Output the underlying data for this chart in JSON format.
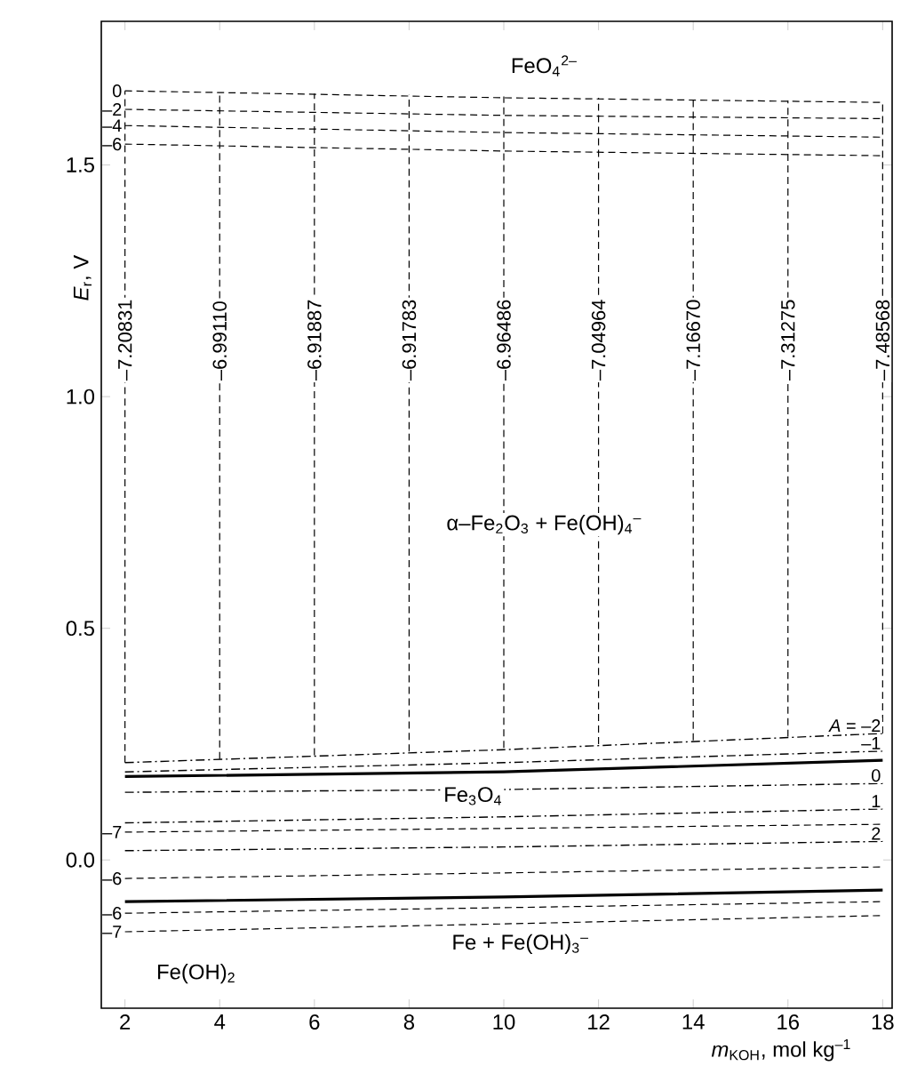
{
  "chart_data": {
    "type": "line",
    "xlabel": "*m*$_{KOH}$, mol kg$^{–1}$",
    "ylabel": "*E*$_{r}$, V",
    "xlim": [
      1.5,
      18.2
    ],
    "ylim": [
      -0.32,
      1.81
    ],
    "xticks": [
      2,
      4,
      6,
      8,
      10,
      12,
      14,
      16,
      18
    ],
    "yticks": [
      {
        "value": 0,
        "label": "0.0"
      },
      {
        "value": 0.5,
        "label": "0.5"
      },
      {
        "value": 1,
        "label": "1.0"
      },
      {
        "value": 1.5,
        "label": "1.5"
      }
    ],
    "grid": false,
    "series": [
      {
        "color": "#000000",
        "line_style": "dashed",
        "x": [
          2,
          10,
          18
        ],
        "values": [
          1.66,
          1.645,
          1.635
        ]
      },
      {
        "color": "#000000",
        "line_style": "dashed",
        "x": [
          2,
          10,
          18
        ],
        "values": [
          1.62,
          1.607,
          1.6
        ]
      },
      {
        "color": "#000000",
        "line_style": "dashed",
        "x": [
          2,
          10,
          18
        ],
        "values": [
          1.585,
          1.57,
          1.56
        ]
      },
      {
        "color": "#000000",
        "line_style": "dashed",
        "x": [
          2,
          10,
          18
        ],
        "values": [
          1.545,
          1.53,
          1.52
        ]
      },
      {
        "color": "#000000",
        "line_style": "dashed",
        "x": [
          2,
          2
        ],
        "values": [
          0.21,
          1.66
        ]
      },
      {
        "color": "#000000",
        "line_style": "dashed",
        "x": [
          4,
          4
        ],
        "values": [
          0.218,
          1.657
        ]
      },
      {
        "color": "#000000",
        "line_style": "dashed",
        "x": [
          6,
          6
        ],
        "values": [
          0.226,
          1.654
        ]
      },
      {
        "color": "#000000",
        "line_style": "dashed",
        "x": [
          8,
          8
        ],
        "values": [
          0.234,
          1.651
        ]
      },
      {
        "color": "#000000",
        "line_style": "dashed",
        "x": [
          10,
          10
        ],
        "values": [
          0.242,
          1.648
        ]
      },
      {
        "color": "#000000",
        "line_style": "dashed",
        "x": [
          12,
          12
        ],
        "values": [
          0.25,
          1.645
        ]
      },
      {
        "color": "#000000",
        "line_style": "dashed",
        "x": [
          14,
          14
        ],
        "values": [
          0.258,
          1.642
        ]
      },
      {
        "color": "#000000",
        "line_style": "dashed",
        "x": [
          16,
          16
        ],
        "values": [
          0.266,
          1.639
        ]
      },
      {
        "color": "#000000",
        "line_style": "dashed",
        "x": [
          18,
          18
        ],
        "values": [
          0.273,
          1.635
        ]
      },
      {
        "color": "#000000",
        "line_style": "dashdot",
        "x": [
          2,
          10,
          18
        ],
        "values": [
          0.21,
          0.238,
          0.273
        ]
      },
      {
        "color": "#000000",
        "line_style": "dashdot",
        "x": [
          2,
          10,
          18
        ],
        "values": [
          0.19,
          0.21,
          0.235
        ]
      },
      {
        "color": "#000000",
        "line_style": "solid",
        "x": [
          2,
          10,
          18
        ],
        "values": [
          0.18,
          0.19,
          0.215
        ]
      },
      {
        "color": "#000000",
        "line_style": "dashdot",
        "x": [
          2,
          10,
          18
        ],
        "values": [
          0.146,
          0.152,
          0.165
        ]
      },
      {
        "color": "#000000",
        "line_style": "dashdot",
        "x": [
          2,
          10,
          18
        ],
        "values": [
          0.08,
          0.093,
          0.11
        ]
      },
      {
        "color": "#000000",
        "line_style": "dashed",
        "x": [
          2,
          10,
          18
        ],
        "values": [
          0.06,
          0.068,
          0.077
        ]
      },
      {
        "color": "#000000",
        "line_style": "dashdot",
        "x": [
          2,
          10,
          18
        ],
        "values": [
          0.02,
          0.028,
          0.04
        ]
      },
      {
        "color": "#000000",
        "line_style": "dashed",
        "x": [
          2,
          10,
          18
        ],
        "values": [
          -0.04,
          -0.028,
          -0.015
        ]
      },
      {
        "color": "#000000",
        "line_style": "solid",
        "x": [
          2,
          10,
          18
        ],
        "values": [
          -0.09,
          -0.08,
          -0.065
        ]
      },
      {
        "color": "#000000",
        "line_style": "dashed",
        "x": [
          2,
          10,
          18
        ],
        "values": [
          -0.115,
          -0.103,
          -0.09
        ]
      },
      {
        "color": "#000000",
        "line_style": "dashed",
        "x": [
          2,
          10,
          18
        ],
        "values": [
          -0.155,
          -0.138,
          -0.12
        ]
      }
    ],
    "annotations": [
      {
        "text": "0",
        "x": 2,
        "y": 1.66
      },
      {
        "text": "–2",
        "x": 2,
        "y": 1.62
      },
      {
        "text": "–4",
        "x": 2,
        "y": 1.585
      },
      {
        "text": "–6",
        "x": 2,
        "y": 1.545
      },
      {
        "text": "–7.20831",
        "x": 2,
        "y": 1.03
      },
      {
        "text": "–6.99110",
        "x": 4,
        "y": 1.03
      },
      {
        "text": "–6.91887",
        "x": 6,
        "y": 1.03
      },
      {
        "text": "–6.91783",
        "x": 8,
        "y": 1.03
      },
      {
        "text": "–6.96486",
        "x": 10,
        "y": 1.03
      },
      {
        "text": "–7.04964",
        "x": 12,
        "y": 1.03
      },
      {
        "text": "–7.16670",
        "x": 14,
        "y": 1.03
      },
      {
        "text": "–7.31275",
        "x": 16,
        "y": 1.03
      },
      {
        "text": "–7.48568",
        "x": 18,
        "y": 1.03
      },
      {
        "text": "*A* = –2",
        "x": 18,
        "y": 0.273
      },
      {
        "text": "–1",
        "x": 18,
        "y": 0.235
      },
      {
        "text": "0",
        "x": 18,
        "y": 0.165
      },
      {
        "text": "1",
        "x": 18,
        "y": 0.11
      },
      {
        "text": "2",
        "x": 18,
        "y": 0.04
      },
      {
        "text": "–7",
        "x": 2,
        "y": 0.06
      },
      {
        "text": "–6",
        "x": 2,
        "y": -0.04
      },
      {
        "text": "–6",
        "x": 2,
        "y": -0.115
      },
      {
        "text": "–7",
        "x": 2,
        "y": -0.155
      },
      "FeO$_{4}$$^{2–}$",
      "α–Fe$_{2}$O$_{3}$ + Fe(OH)$_{4}$$^{–}$",
      "Fe$_{3}$O$_{4}$",
      "Fe + Fe(OH)$_{3}$$^{–}$",
      "Fe(OH)$_{2}$"
    ]
  }
}
